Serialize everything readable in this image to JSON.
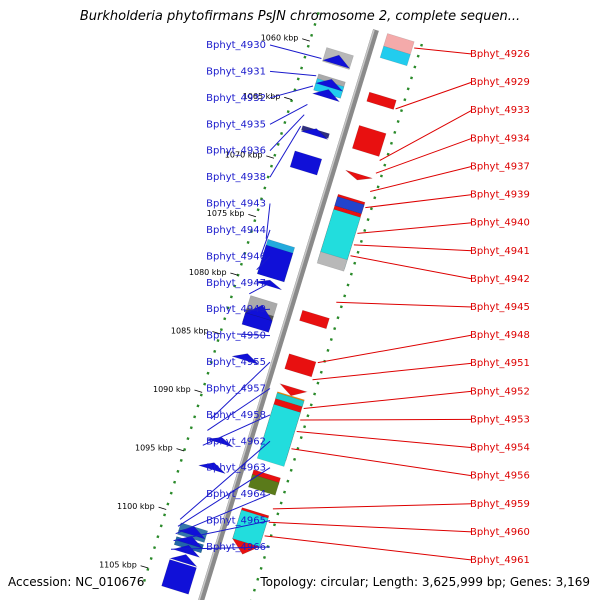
{
  "title": "Burkholderia phytofirmans PsJN chromosome 2, complete sequen...",
  "accession": "Accession: NC_010676",
  "topology": "Topology: circular; Length: 3,625,999 bp; Genes: 3,169",
  "kbp_ticks": [
    {
      "label": "1060 kbp",
      "t": 0.05
    },
    {
      "label": "1065 kbp",
      "t": 0.152
    },
    {
      "label": "1070 kbp",
      "t": 0.254
    },
    {
      "label": "1075 kbp",
      "t": 0.356
    },
    {
      "label": "1080 kbp",
      "t": 0.458
    },
    {
      "label": "1085 kbp",
      "t": 0.56
    },
    {
      "label": "1090 kbp",
      "t": 0.662
    },
    {
      "label": "1095 kbp",
      "t": 0.764
    },
    {
      "label": "1100 kbp",
      "t": 0.866
    },
    {
      "label": "1105 kbp",
      "t": 0.968
    }
  ],
  "left_genes": [
    {
      "name": "Bphyt_4930",
      "t": 0.07
    },
    {
      "name": "Bphyt_4931",
      "t": 0.1
    },
    {
      "name": "Bphyt_4932",
      "t": 0.118
    },
    {
      "name": "Bphyt_4935",
      "t": 0.15
    },
    {
      "name": "Bphyt_4936",
      "t": 0.168
    },
    {
      "name": "Bphyt_4938",
      "t": 0.188
    },
    {
      "name": "Bphyt_4943",
      "t": 0.384
    },
    {
      "name": "Bphyt_4944",
      "t": 0.412
    },
    {
      "name": "Bphyt_4946",
      "t": 0.438
    },
    {
      "name": "Bphyt_4947",
      "t": 0.48
    },
    {
      "name": "Bphyt_4949",
      "t": 0.51
    },
    {
      "name": "Bphyt_4950",
      "t": 0.55
    },
    {
      "name": "Bphyt_4955",
      "t": 0.698
    },
    {
      "name": "Bphyt_4957",
      "t": 0.718
    },
    {
      "name": "Bphyt_4958",
      "t": 0.744
    },
    {
      "name": "Bphyt_4962",
      "t": 0.873
    },
    {
      "name": "Bphyt_4963",
      "t": 0.885
    },
    {
      "name": "Bphyt_4964",
      "t": 0.898
    },
    {
      "name": "Bphyt_4965",
      "t": 0.91
    },
    {
      "name": "Bphyt_4966",
      "t": 0.925
    }
  ],
  "right_genes": [
    {
      "name": "Bphyt_4926",
      "t": 0.012
    },
    {
      "name": "Bphyt_4929",
      "t": 0.118
    },
    {
      "name": "Bphyt_4933",
      "t": 0.208
    },
    {
      "name": "Bphyt_4934",
      "t": 0.23
    },
    {
      "name": "Bphyt_4937",
      "t": 0.262
    },
    {
      "name": "Bphyt_4939",
      "t": 0.29
    },
    {
      "name": "Bphyt_4940",
      "t": 0.335
    },
    {
      "name": "Bphyt_4941",
      "t": 0.355
    },
    {
      "name": "Bphyt_4942",
      "t": 0.374
    },
    {
      "name": "Bphyt_4945",
      "t": 0.455
    },
    {
      "name": "Bphyt_4948",
      "t": 0.56
    },
    {
      "name": "Bphyt_4951",
      "t": 0.59
    },
    {
      "name": "Bphyt_4952",
      "t": 0.64
    },
    {
      "name": "Bphyt_4953",
      "t": 0.66
    },
    {
      "name": "Bphyt_4954",
      "t": 0.68
    },
    {
      "name": "Bphyt_4956",
      "t": 0.71
    },
    {
      "name": "Bphyt_4959",
      "t": 0.815
    },
    {
      "name": "Bphyt_4960",
      "t": 0.838
    },
    {
      "name": "Bphyt_4961",
      "t": 0.862
    }
  ],
  "features": [
    {
      "side": "right",
      "kind": "rect",
      "t0": 0.0,
      "t1": 0.022,
      "color": "#f4aaaa"
    },
    {
      "side": "right",
      "kind": "rect",
      "t0": 0.022,
      "t1": 0.042,
      "color": "#22ccee"
    },
    {
      "side": "left",
      "kind": "rect",
      "t0": 0.052,
      "t1": 0.076,
      "color": "#b8b8b8"
    },
    {
      "side": "left",
      "kind": "tri",
      "t0": 0.058,
      "t1": 0.074,
      "color": "#1010d8"
    },
    {
      "side": "left",
      "kind": "rect",
      "t0": 0.098,
      "t1": 0.126,
      "color": "#aaaaaa"
    },
    {
      "side": "left",
      "kind": "rect",
      "t0": 0.106,
      "t1": 0.126,
      "color": "#22ccee"
    },
    {
      "side": "left",
      "kind": "tri",
      "t0": 0.1,
      "t1": 0.114,
      "color": "#1010d8"
    },
    {
      "side": "left",
      "kind": "tri",
      "t0": 0.118,
      "t1": 0.132,
      "color": "#1010d8"
    },
    {
      "side": "right",
      "kind": "rect",
      "t0": 0.102,
      "t1": 0.118,
      "color": "#e81010"
    },
    {
      "side": "left",
      "kind": "rect",
      "t0": 0.188,
      "t1": 0.196,
      "color": "#303080"
    },
    {
      "side": "left",
      "kind": "tri",
      "t0": 0.186,
      "t1": 0.198,
      "color": "#1010d8"
    },
    {
      "side": "right",
      "kind": "rect",
      "t0": 0.16,
      "t1": 0.2,
      "color": "#e81010"
    },
    {
      "side": "right",
      "kind": "tri",
      "t0": 0.238,
      "t1": 0.248,
      "color": "#e81010"
    },
    {
      "side": "left",
      "kind": "rect",
      "t0": 0.232,
      "t1": 0.26,
      "color": "#1010d8"
    },
    {
      "side": "right",
      "kind": "rect",
      "t0": 0.28,
      "t1": 0.3,
      "color": "#e81010"
    },
    {
      "side": "right",
      "kind": "rect",
      "t0": 0.284,
      "t1": 0.3,
      "color": "#2244cc"
    },
    {
      "side": "right",
      "kind": "rect",
      "t0": 0.3,
      "t1": 0.38,
      "color": "#e81010"
    },
    {
      "side": "right",
      "kind": "rect",
      "t0": 0.306,
      "t1": 0.396,
      "color": "#22dddd"
    },
    {
      "side": "right",
      "kind": "rect",
      "t0": 0.38,
      "t1": 0.4,
      "color": "#b8b8b8"
    },
    {
      "side": "left",
      "kind": "rect",
      "t0": 0.386,
      "t1": 0.446,
      "color": "#22aadd"
    },
    {
      "side": "left",
      "kind": "rect",
      "t0": 0.396,
      "t1": 0.446,
      "color": "#1010d8"
    },
    {
      "side": "left",
      "kind": "tri",
      "t0": 0.45,
      "t1": 0.46,
      "color": "#1010d8"
    },
    {
      "side": "right",
      "kind": "rect",
      "t0": 0.482,
      "t1": 0.5,
      "color": "#e81010"
    },
    {
      "side": "left",
      "kind": "rect",
      "t0": 0.484,
      "t1": 0.506,
      "color": "#aaaaaa"
    },
    {
      "side": "left",
      "kind": "rect",
      "t0": 0.506,
      "t1": 0.53,
      "color": "#555555"
    },
    {
      "side": "left",
      "kind": "tri",
      "t0": 0.494,
      "t1": 0.514,
      "color": "#1010d8"
    },
    {
      "side": "left",
      "kind": "rect",
      "t0": 0.514,
      "t1": 0.534,
      "color": "#1010d8"
    },
    {
      "side": "right",
      "kind": "rect",
      "t0": 0.558,
      "t1": 0.584,
      "color": "#e81010"
    },
    {
      "side": "left",
      "kind": "tri",
      "t0": 0.578,
      "t1": 0.59,
      "color": "#1010d8"
    },
    {
      "side": "right",
      "kind": "tri",
      "t0": 0.61,
      "t1": 0.624,
      "color": "#e81010"
    },
    {
      "side": "right",
      "kind": "rect",
      "t0": 0.624,
      "t1": 0.636,
      "color": "#ff8800"
    },
    {
      "side": "right",
      "kind": "rect",
      "t0": 0.626,
      "t1": 0.636,
      "color": "#22cccc"
    },
    {
      "side": "right",
      "kind": "rect",
      "t0": 0.636,
      "t1": 0.73,
      "color": "#e81010"
    },
    {
      "side": "right",
      "kind": "rect",
      "t0": 0.646,
      "t1": 0.74,
      "color": "#22dddd"
    },
    {
      "side": "left",
      "kind": "tri",
      "t0": 0.724,
      "t1": 0.734,
      "color": "#1010d8"
    },
    {
      "side": "left",
      "kind": "tri",
      "t0": 0.768,
      "t1": 0.78,
      "color": "#1010d8"
    },
    {
      "side": "right",
      "kind": "rect",
      "t0": 0.76,
      "t1": 0.772,
      "color": "#e81010"
    },
    {
      "side": "right",
      "kind": "rect",
      "t0": 0.768,
      "t1": 0.79,
      "color": "#5a7a1a"
    },
    {
      "side": "right",
      "kind": "rect",
      "t0": 0.826,
      "t1": 0.88,
      "color": "#e81010"
    },
    {
      "side": "right",
      "kind": "rect",
      "t0": 0.83,
      "t1": 0.88,
      "color": "#22dddd"
    },
    {
      "side": "right",
      "kind": "tri",
      "t0": 0.88,
      "t1": 0.9,
      "color": "#e81010"
    },
    {
      "side": "left",
      "kind": "rect",
      "t0": 0.88,
      "t1": 0.9,
      "color": "#3377aa"
    },
    {
      "side": "left",
      "kind": "rect",
      "t0": 0.904,
      "t1": 0.918,
      "color": "#33bb66"
    },
    {
      "side": "left",
      "kind": "rect",
      "t0": 0.904,
      "t1": 0.918,
      "color": "#2266aa"
    },
    {
      "side": "left",
      "kind": "tri",
      "t0": 0.88,
      "t1": 0.894,
      "color": "#1010d8"
    },
    {
      "side": "left",
      "kind": "tri",
      "t0": 0.896,
      "t1": 0.91,
      "color": "#1010d8"
    },
    {
      "side": "left",
      "kind": "tri",
      "t0": 0.912,
      "t1": 0.926,
      "color": "#1010d8"
    },
    {
      "side": "left",
      "kind": "tri",
      "t0": 0.928,
      "t1": 0.942,
      "color": "#1010d8"
    },
    {
      "side": "left",
      "kind": "rect",
      "t0": 0.944,
      "t1": 0.99,
      "color": "#1010d8"
    }
  ],
  "colors": {
    "backbone": "#8a8a8a",
    "tick_marks": "#2a8a2a",
    "left_label": "#1a1acc",
    "right_label": "#dd0000"
  }
}
